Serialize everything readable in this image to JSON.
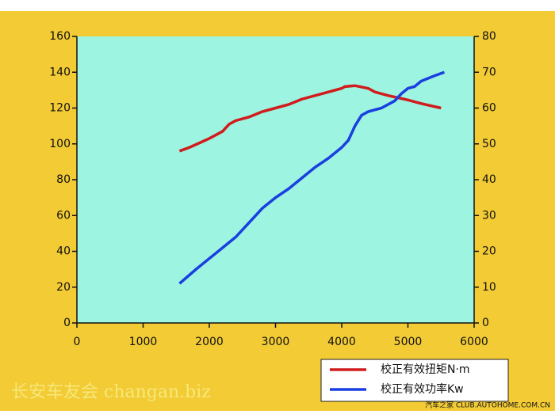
{
  "chart_data": {
    "type": "line",
    "xlim": [
      0,
      6000
    ],
    "xticks": [
      0,
      1000,
      2000,
      3000,
      4000,
      5000,
      6000
    ],
    "ylim": [
      0,
      160
    ],
    "yticks": [
      0,
      20,
      40,
      60,
      80,
      100,
      120,
      140,
      160
    ],
    "y2lim": [
      0,
      80
    ],
    "y2ticks": [
      0,
      10,
      20,
      30,
      40,
      50,
      60,
      70,
      80
    ],
    "legend": "bottom-right",
    "series": [
      {
        "name": "校正有效扭矩N·m",
        "color": "#d01c1c",
        "x": [
          1550,
          1700,
          2000,
          2100,
          2200,
          2300,
          2400,
          2600,
          2800,
          3000,
          3200,
          3400,
          3600,
          3800,
          4000,
          4050,
          4200,
          4400,
          4500,
          4700,
          5000,
          5200,
          5500
        ],
        "values": [
          96,
          98,
          103,
          105,
          107,
          111,
          113,
          115,
          118,
          120,
          122,
          125,
          127,
          129,
          131,
          132,
          132.5,
          131,
          129,
          127,
          124.5,
          122.5,
          120
        ]
      },
      {
        "name": "校正有效功率Kw",
        "color": "#1a3fe0",
        "axis": "y2",
        "x": [
          1550,
          1800,
          2000,
          2200,
          2400,
          2600,
          2800,
          3000,
          3200,
          3400,
          3600,
          3800,
          4000,
          4100,
          4150,
          4200,
          4300,
          4400,
          4600,
          4800,
          4900,
          5000,
          5100,
          5200,
          5400,
          5550
        ],
        "values": [
          11,
          15,
          18,
          21,
          24,
          28,
          32,
          35,
          37.5,
          40.5,
          43.5,
          46,
          49,
          51,
          53,
          55,
          58,
          59,
          60,
          62,
          64,
          65.5,
          66,
          67.5,
          69,
          70
        ]
      }
    ],
    "annotations": [
      "长安车友会 changan.biz",
      "汽车之家 CLUB.AUTOHOME.COM.CN"
    ]
  }
}
